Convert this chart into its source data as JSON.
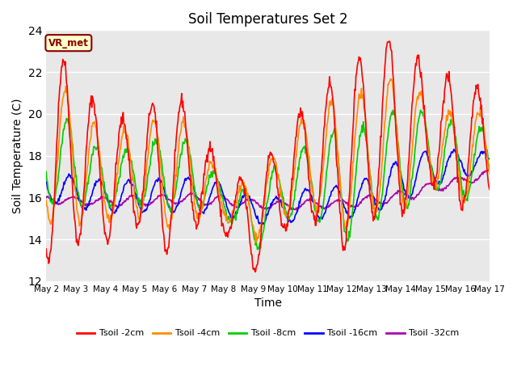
{
  "title": "Soil Temperatures Set 2",
  "xlabel": "Time",
  "ylabel": "Soil Temperature (C)",
  "ylim": [
    12,
    24
  ],
  "yticks": [
    12,
    14,
    16,
    18,
    20,
    22,
    24
  ],
  "colors": {
    "tsoil_2cm": "#ff0000",
    "tsoil_4cm": "#ff8c00",
    "tsoil_8cm": "#00cc00",
    "tsoil_16cm": "#0000ff",
    "tsoil_32cm": "#aa00aa"
  },
  "legend_labels": [
    "Tsoil -2cm",
    "Tsoil -4cm",
    "Tsoil -8cm",
    "Tsoil -16cm",
    "Tsoil -32cm"
  ],
  "xtick_labels": [
    "May 2",
    "May 3",
    "May 4",
    "May 5",
    "May 6",
    "May 7",
    "May 8",
    "May 9",
    "May 10",
    "May 11",
    "May 12",
    "May 13",
    "May 14",
    "May 15",
    "May 16",
    "May 17"
  ],
  "annotation_text": "VR_met",
  "plot_bg_color": "#e8e8e8",
  "linewidth": 1.2
}
